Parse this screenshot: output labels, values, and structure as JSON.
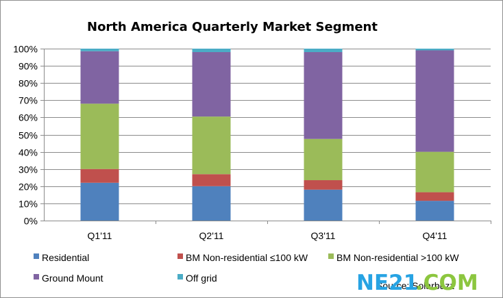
{
  "chart_data": {
    "type": "bar",
    "stacked": true,
    "title": "North America Quarterly Market Segment",
    "xlabel": "",
    "ylabel": "",
    "ylim": [
      0,
      100
    ],
    "yticks": [
      "0%",
      "10%",
      "20%",
      "30%",
      "40%",
      "50%",
      "60%",
      "70%",
      "80%",
      "90%",
      "100%"
    ],
    "grid": true,
    "legend_position": "bottom",
    "categories": [
      "Q1'11",
      "Q2'11",
      "Q3'11",
      "Q4'11"
    ],
    "series": [
      {
        "name": "Residential",
        "color": "#4f81bd",
        "values": [
          22,
          20,
          18,
          11.5
        ]
      },
      {
        "name": "BM Non-residential ≤100 kW",
        "color": "#c0504d",
        "values": [
          8,
          7,
          5.5,
          5
        ]
      },
      {
        "name": "BM Non-residential >100 kW",
        "color": "#9bbb59",
        "values": [
          38,
          33.5,
          24,
          23.5
        ]
      },
      {
        "name": "Ground Mount",
        "color": "#8064a2",
        "values": [
          30.5,
          37.5,
          50.5,
          59
        ]
      },
      {
        "name": "Off grid",
        "color": "#4bacc6",
        "values": [
          1.5,
          2,
          2,
          1
        ]
      }
    ],
    "annotations": [
      "Source: Solarbuzz"
    ]
  },
  "watermark": {
    "part_a": "NE21",
    "part_b": ".COM"
  }
}
